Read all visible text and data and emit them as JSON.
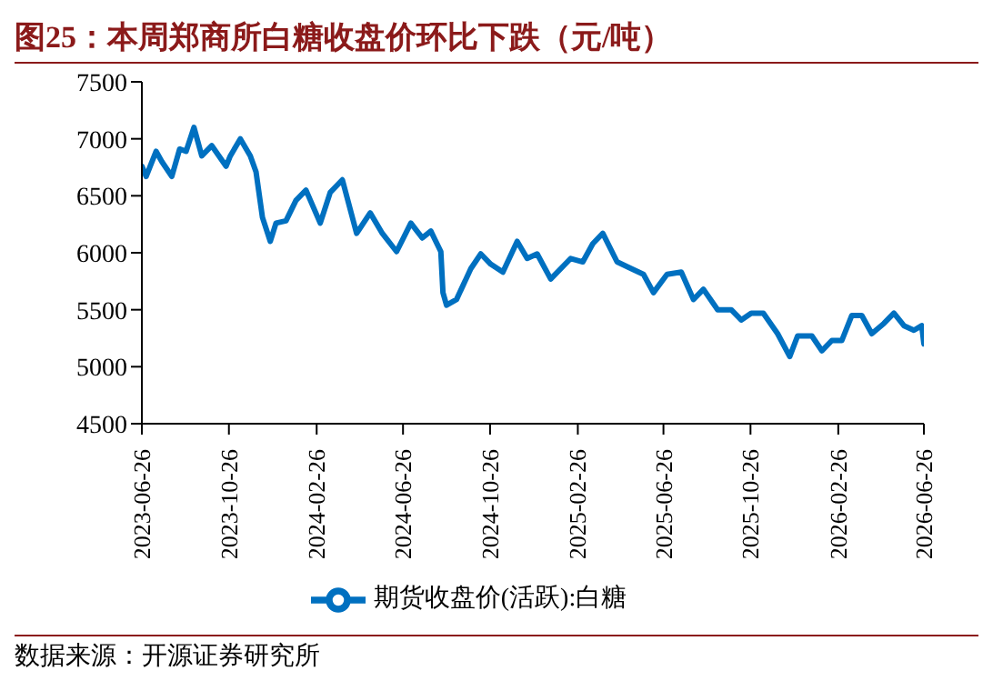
{
  "chart_data": {
    "type": "line",
    "title": "图25：本周郑商所白糖收盘价环比下跌（元/吨）",
    "x": [
      "2023-06-26",
      "2023-07-02",
      "2023-07-16",
      "2023-07-24",
      "2023-08-07",
      "2023-08-18",
      "2023-08-27",
      "2023-09-07",
      "2023-09-18",
      "2023-10-02",
      "2023-10-22",
      "2023-10-28",
      "2023-11-11",
      "2023-11-25",
      "2023-12-03",
      "2023-12-12",
      "2023-12-23",
      "2023-12-31",
      "2024-01-14",
      "2024-01-28",
      "2024-02-11",
      "2024-03-02",
      "2024-03-16",
      "2024-04-02",
      "2024-04-22",
      "2024-05-11",
      "2024-05-28",
      "2024-06-17",
      "2024-07-07",
      "2024-07-23",
      "2024-08-04",
      "2024-08-18",
      "2024-08-21",
      "2024-08-26",
      "2024-09-09",
      "2024-09-29",
      "2024-10-13",
      "2024-10-27",
      "2024-11-13",
      "2024-12-03",
      "2024-12-17",
      "2024-12-31",
      "2025-01-19",
      "2025-02-16",
      "2025-03-05",
      "2025-03-19",
      "2025-04-02",
      "2025-04-22",
      "2025-05-12",
      "2025-05-29",
      "2025-06-12",
      "2025-07-01",
      "2025-07-21",
      "2025-08-07",
      "2025-08-21",
      "2025-09-10",
      "2025-09-29",
      "2025-10-13",
      "2025-10-27",
      "2025-11-13",
      "2025-12-03",
      "2025-12-20",
      "2025-12-31",
      "2026-01-20",
      "2026-02-03",
      "2026-02-17",
      "2026-03-03",
      "2026-03-17",
      "2026-03-31",
      "2026-04-14",
      "2026-05-01",
      "2026-05-15",
      "2026-05-29",
      "2026-06-12",
      "2026-06-23",
      "2026-06-26"
    ],
    "series": [
      {
        "name": "期货收盘价(活跃):白糖",
        "color": "#0070c0",
        "values": [
          6760,
          6670,
          6890,
          6800,
          6670,
          6910,
          6890,
          7100,
          6850,
          6940,
          6760,
          6850,
          7000,
          6850,
          6710,
          6310,
          6100,
          6260,
          6280,
          6460,
          6550,
          6260,
          6530,
          6640,
          6170,
          6350,
          6170,
          6010,
          6260,
          6130,
          6190,
          6010,
          5650,
          5540,
          5590,
          5860,
          5990,
          5900,
          5830,
          6100,
          5950,
          5990,
          5770,
          5950,
          5920,
          6080,
          6170,
          5920,
          5860,
          5810,
          5650,
          5810,
          5830,
          5590,
          5680,
          5500,
          5500,
          5410,
          5470,
          5470,
          5290,
          5090,
          5270,
          5270,
          5140,
          5230,
          5230,
          5450,
          5450,
          5290,
          5380,
          5470,
          5360,
          5320,
          5360,
          5200
        ]
      }
    ],
    "xlim": [
      "2023-06-26",
      "2026-06-26"
    ],
    "xticks": [
      "2023-06-26",
      "2023-10-26",
      "2024-02-26",
      "2024-06-26",
      "2024-10-26",
      "2025-02-26",
      "2025-06-26",
      "2025-10-26",
      "2026-02-26",
      "2026-06-26"
    ],
    "ylim": [
      4500,
      7500
    ],
    "yticks": [
      4500,
      5000,
      5500,
      6000,
      6500,
      7000,
      7500
    ],
    "grid": false,
    "legend": "bottom",
    "line_style": "solid",
    "marker": "none",
    "annotations": [
      "数据来源：开源证券研究所"
    ]
  }
}
